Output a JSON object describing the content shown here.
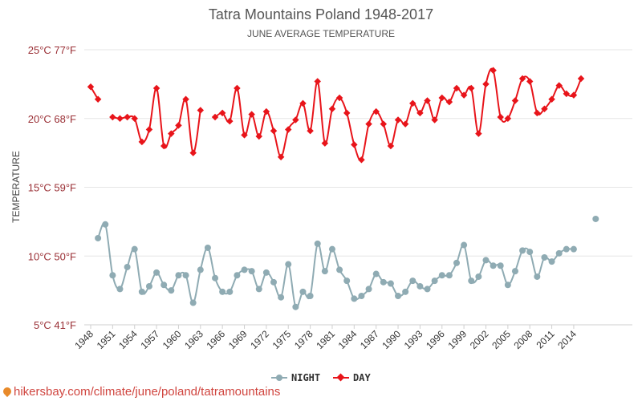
{
  "chart_data": {
    "type": "line",
    "title": "Tatra Mountains Poland 1948-2017",
    "subtitle": "JUNE AVERAGE TEMPERATURE",
    "ylabel": "TEMPERATURE",
    "ylim": [
      5,
      25
    ],
    "yticks": [
      {
        "value": 5,
        "label": "5°C 41°F"
      },
      {
        "value": 10,
        "label": "10°C 50°F"
      },
      {
        "value": 15,
        "label": "15°C 59°F"
      },
      {
        "value": 20,
        "label": "20°C 68°F"
      },
      {
        "value": 25,
        "label": "25°C 77°F"
      }
    ],
    "xlim": [
      1948,
      2017
    ],
    "xticks": [
      "1948",
      "1951",
      "1954",
      "1957",
      "1960",
      "1963",
      "1966",
      "1969",
      "1972",
      "1975",
      "1978",
      "1981",
      "1984",
      "1987",
      "1990",
      "1993",
      "1996",
      "1999",
      "2002",
      "2005",
      "2008",
      "2011",
      "2014"
    ],
    "grid": true,
    "legend_position": "bottom",
    "series": [
      {
        "name": "NIGHT",
        "color": "#8fabb3",
        "points": [
          [
            1949,
            11.3
          ],
          [
            1950,
            12.3
          ],
          [
            1951,
            8.6
          ],
          [
            1952,
            7.6
          ],
          [
            1953,
            9.2
          ],
          [
            1954,
            10.5
          ],
          [
            1955,
            7.4
          ],
          [
            1956,
            7.8
          ],
          [
            1957,
            8.8
          ],
          [
            1958,
            7.9
          ],
          [
            1959,
            7.5
          ],
          [
            1960,
            8.6
          ],
          [
            1961,
            8.6
          ],
          [
            1962,
            6.6
          ],
          [
            1963,
            9.0
          ],
          [
            1964,
            10.6
          ],
          [
            1965,
            8.4
          ],
          [
            1966,
            7.4
          ],
          [
            1967,
            7.4
          ],
          [
            1968,
            8.6
          ],
          [
            1969,
            9.0
          ],
          [
            1970,
            8.9
          ],
          [
            1971,
            7.6
          ],
          [
            1972,
            8.8
          ],
          [
            1973,
            8.1
          ],
          [
            1974,
            7.0
          ],
          [
            1975,
            9.4
          ],
          [
            1976,
            6.3
          ],
          [
            1977,
            7.4
          ],
          [
            1978,
            7.1
          ],
          [
            1979,
            10.9
          ],
          [
            1980,
            8.9
          ],
          [
            1981,
            10.5
          ],
          [
            1982,
            9.0
          ],
          [
            1983,
            8.2
          ],
          [
            1984,
            6.9
          ],
          [
            1985,
            7.1
          ],
          [
            1986,
            7.6
          ],
          [
            1987,
            8.7
          ],
          [
            1988,
            8.1
          ],
          [
            1989,
            8.0
          ],
          [
            1990,
            7.1
          ],
          [
            1991,
            7.4
          ],
          [
            1992,
            8.2
          ],
          [
            1993,
            7.8
          ],
          [
            1994,
            7.6
          ],
          [
            1995,
            8.2
          ],
          [
            1996,
            8.6
          ],
          [
            1997,
            8.6
          ],
          [
            1998,
            9.5
          ],
          [
            1999,
            10.8
          ],
          [
            2000,
            8.2
          ],
          [
            2001,
            8.5
          ],
          [
            2002,
            9.7
          ],
          [
            2003,
            9.3
          ],
          [
            2004,
            9.3
          ],
          [
            2005,
            7.9
          ],
          [
            2006,
            8.9
          ],
          [
            2007,
            10.4
          ],
          [
            2008,
            10.3
          ],
          [
            2009,
            8.5
          ],
          [
            2010,
            9.9
          ],
          [
            2011,
            9.6
          ],
          [
            2012,
            10.2
          ],
          [
            2013,
            10.5
          ],
          [
            2014,
            10.5
          ],
          [
            2015,
            null
          ],
          [
            2016,
            null
          ],
          [
            2017,
            12.7
          ]
        ]
      },
      {
        "name": "DAY",
        "color": "#e8141a",
        "points": [
          [
            1948,
            22.3
          ],
          [
            1949,
            21.4
          ],
          [
            1950,
            null
          ],
          [
            1951,
            20.1
          ],
          [
            1952,
            20.0
          ],
          [
            1953,
            20.1
          ],
          [
            1954,
            20.0
          ],
          [
            1955,
            18.3
          ],
          [
            1956,
            19.2
          ],
          [
            1957,
            22.2
          ],
          [
            1958,
            18.0
          ],
          [
            1959,
            18.9
          ],
          [
            1960,
            19.5
          ],
          [
            1961,
            21.4
          ],
          [
            1962,
            17.5
          ],
          [
            1963,
            20.6
          ],
          [
            1964,
            null
          ],
          [
            1965,
            20.1
          ],
          [
            1966,
            20.4
          ],
          [
            1967,
            19.8
          ],
          [
            1968,
            22.2
          ],
          [
            1969,
            18.8
          ],
          [
            1970,
            20.3
          ],
          [
            1971,
            18.7
          ],
          [
            1972,
            20.5
          ],
          [
            1973,
            19.1
          ],
          [
            1974,
            17.2
          ],
          [
            1975,
            19.2
          ],
          [
            1976,
            19.9
          ],
          [
            1977,
            21.1
          ],
          [
            1978,
            19.1
          ],
          [
            1979,
            22.7
          ],
          [
            1980,
            18.2
          ],
          [
            1981,
            20.7
          ],
          [
            1982,
            21.5
          ],
          [
            1983,
            20.4
          ],
          [
            1984,
            18.1
          ],
          [
            1985,
            17.0
          ],
          [
            1986,
            19.6
          ],
          [
            1987,
            20.5
          ],
          [
            1988,
            19.6
          ],
          [
            1989,
            18.0
          ],
          [
            1990,
            19.9
          ],
          [
            1991,
            19.6
          ],
          [
            1992,
            21.1
          ],
          [
            1993,
            20.4
          ],
          [
            1994,
            21.3
          ],
          [
            1995,
            19.9
          ],
          [
            1996,
            21.5
          ],
          [
            1997,
            21.2
          ],
          [
            1998,
            22.2
          ],
          [
            1999,
            21.7
          ],
          [
            2000,
            22.2
          ],
          [
            2001,
            18.9
          ],
          [
            2002,
            22.5
          ],
          [
            2003,
            23.5
          ],
          [
            2004,
            20.1
          ],
          [
            2005,
            20.0
          ],
          [
            2006,
            21.3
          ],
          [
            2007,
            22.9
          ],
          [
            2008,
            22.7
          ],
          [
            2009,
            20.4
          ],
          [
            2010,
            20.7
          ],
          [
            2011,
            21.4
          ],
          [
            2012,
            22.4
          ],
          [
            2013,
            21.8
          ],
          [
            2014,
            21.7
          ],
          [
            2015,
            22.9
          ]
        ]
      }
    ]
  },
  "footer": {
    "source_link": "hikersbay.com/climate/june/poland/tatramountains"
  }
}
